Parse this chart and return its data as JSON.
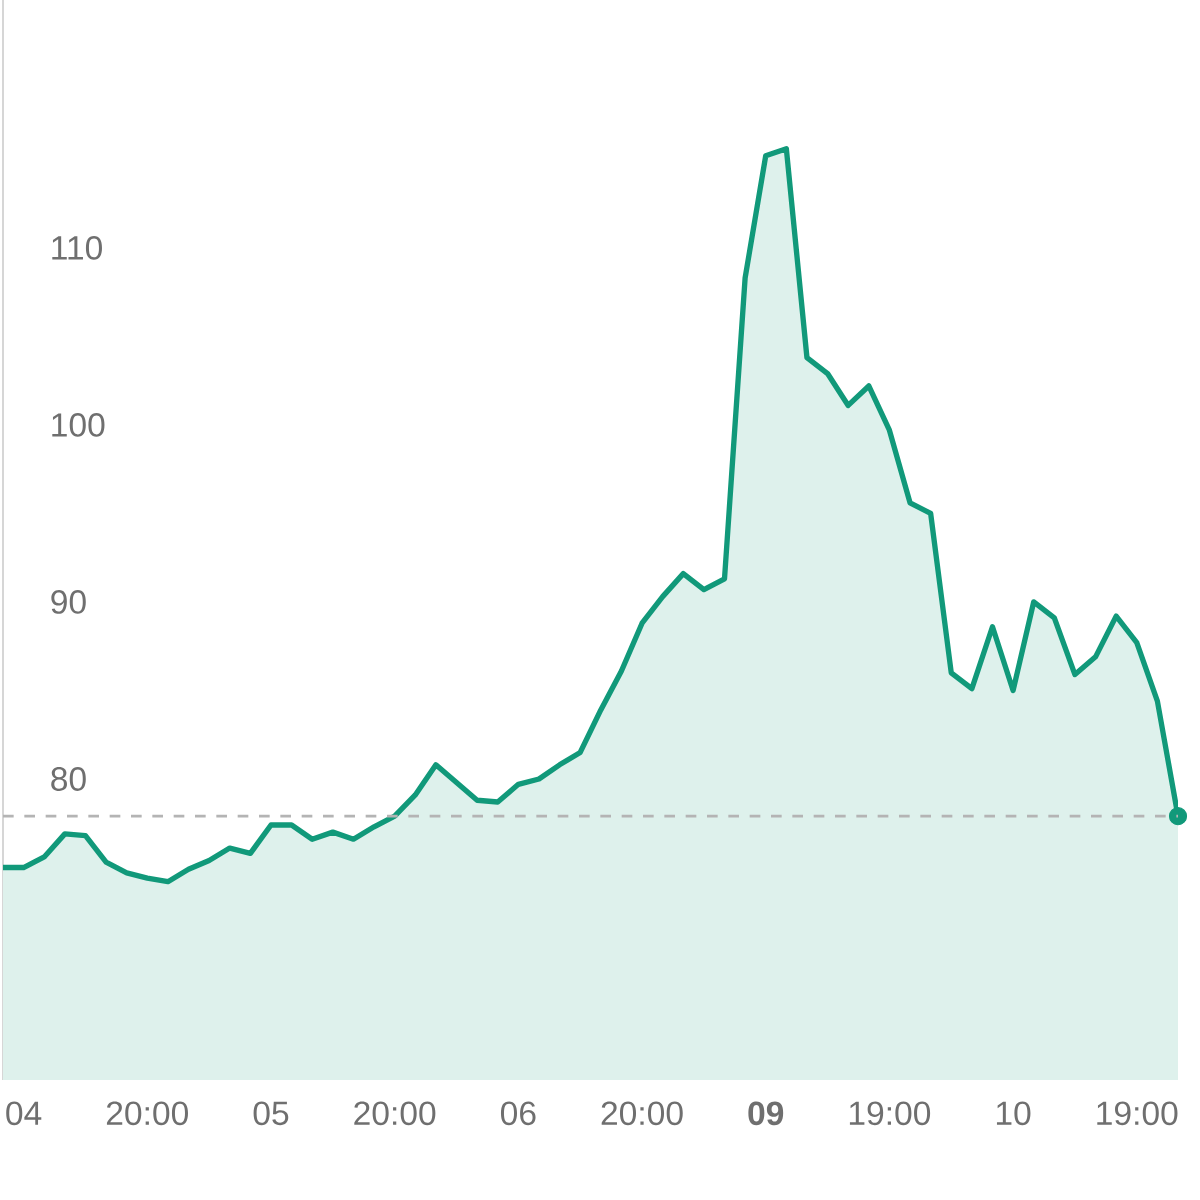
{
  "chart_data": {
    "type": "area",
    "categories": [
      null,
      "04",
      null,
      null,
      null,
      null,
      null,
      "20:00",
      null,
      null,
      null,
      null,
      null,
      "05",
      null,
      null,
      null,
      null,
      null,
      "20:00",
      null,
      null,
      null,
      null,
      null,
      "06",
      null,
      null,
      null,
      null,
      null,
      "20:00",
      null,
      null,
      null,
      null,
      null,
      "**09**",
      null,
      null,
      null,
      null,
      null,
      "19:00",
      null,
      null,
      null,
      null,
      null,
      "10",
      null,
      null,
      null,
      null,
      null,
      "19:00",
      null,
      null
    ],
    "ylim": [
      63,
      124
    ],
    "yticks": [
      80,
      90,
      100,
      110
    ],
    "series": [
      {
        "color": "#11997a",
        "values": [
          75.0,
          75.0,
          75.6,
          76.9,
          76.8,
          75.3,
          74.7,
          74.4,
          74.2,
          74.9,
          75.4,
          76.1,
          75.8,
          77.4,
          77.4,
          76.6,
          77.0,
          76.6,
          77.3,
          77.9,
          79.1,
          80.8,
          79.8,
          78.8,
          78.7,
          79.7,
          80.0,
          80.8,
          81.5,
          83.9,
          86.1,
          88.8,
          90.3,
          91.6,
          90.7,
          91.3,
          108.3,
          115.2,
          115.6,
          103.8,
          102.9,
          101.1,
          102.2,
          99.7,
          95.6,
          95.0,
          86.0,
          85.1,
          88.6,
          85.0,
          90.0,
          89.1,
          85.9,
          86.9,
          89.2,
          87.7,
          84.4,
          77.9
        ]
      },
      {
        "type": "scatter",
        "color": "#11997a",
        "marker": "circle",
        "values": [
          null,
          null,
          null,
          null,
          null,
          null,
          null,
          null,
          null,
          null,
          null,
          null,
          null,
          null,
          null,
          null,
          null,
          null,
          null,
          null,
          null,
          null,
          null,
          null,
          null,
          null,
          null,
          null,
          null,
          null,
          null,
          null,
          null,
          null,
          null,
          null,
          null,
          null,
          null,
          null,
          null,
          null,
          null,
          null,
          null,
          null,
          null,
          null,
          null,
          null,
          null,
          null,
          null,
          null,
          null,
          null,
          null,
          77.9
        ]
      }
    ],
    "ref_lines": [
      {
        "axis": "y",
        "value": 77.9,
        "color": "#b4b4b4",
        "line_style": "dashed"
      }
    ]
  }
}
